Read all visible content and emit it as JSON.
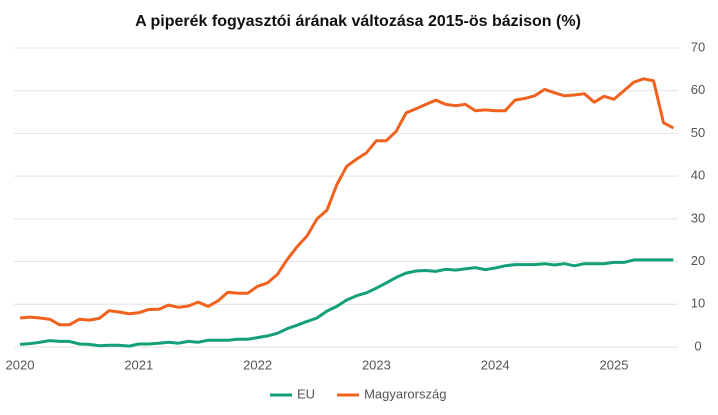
{
  "chart_data": {
    "type": "line",
    "title": "A piperék fogyasztói árának változása 2015-ös bázison (%)",
    "categories": [
      "2020",
      null,
      null,
      null,
      null,
      null,
      null,
      null,
      null,
      null,
      null,
      null,
      "2021",
      null,
      null,
      null,
      null,
      null,
      null,
      null,
      null,
      null,
      null,
      null,
      "2022",
      null,
      null,
      null,
      null,
      null,
      null,
      null,
      null,
      null,
      null,
      null,
      "2023",
      null,
      null,
      null,
      null,
      null,
      null,
      null,
      null,
      null,
      null,
      null,
      "2024",
      null,
      null,
      null,
      null,
      null,
      null,
      null,
      null,
      null,
      null,
      null,
      "2025",
      null,
      null,
      null,
      null,
      null,
      null
    ],
    "series": [
      {
        "name": "EU",
        "color": "#13a078",
        "values": [
          0.6,
          0.8,
          1.1,
          1.5,
          1.3,
          1.3,
          0.7,
          0.6,
          0.3,
          0.4,
          0.4,
          0.2,
          0.7,
          0.7,
          0.9,
          1.1,
          0.9,
          1.3,
          1.1,
          1.6,
          1.6,
          1.6,
          1.8,
          1.8,
          2.2,
          2.6,
          3.2,
          4.3,
          5.1,
          6,
          6.8,
          8.4,
          9.5,
          11,
          12,
          12.7,
          13.8,
          15,
          16.3,
          17.3,
          17.8,
          17.9,
          17.7,
          18.2,
          18,
          18.3,
          18.6,
          18.1,
          18.5,
          19,
          19.3,
          19.3,
          19.3,
          19.5,
          19.2,
          19.5,
          19,
          19.5,
          19.5,
          19.5,
          19.8,
          19.8,
          20.4,
          20.4,
          20.4,
          20.4,
          20.4
        ]
      },
      {
        "name": "Magyarország",
        "color": "#f0621e",
        "values": [
          6.8,
          7,
          6.8,
          6.5,
          5.2,
          5.2,
          6.5,
          6.3,
          6.7,
          8.5,
          8.2,
          7.8,
          8,
          8.8,
          8.8,
          9.8,
          9.3,
          9.6,
          10.5,
          9.5,
          10.8,
          12.8,
          12.6,
          12.6,
          14.2,
          15,
          17,
          20.5,
          23.5,
          26,
          30,
          32,
          38,
          42.3,
          44,
          45.5,
          48.3,
          48.3,
          50.5,
          54.8,
          55.8,
          56.8,
          57.8,
          56.8,
          56.5,
          56.8,
          55.3,
          55.5,
          55.3,
          55.3,
          57.8,
          58.2,
          58.8,
          60.3,
          59.5,
          58.8,
          59,
          59.3,
          57.3,
          58.7,
          58,
          60,
          62,
          62.8,
          62.3,
          52.5,
          51.3
        ]
      }
    ],
    "ylim": [
      0,
      70
    ],
    "yticks": [
      0,
      10,
      20,
      30,
      40,
      50,
      60,
      70
    ],
    "grid": true
  }
}
